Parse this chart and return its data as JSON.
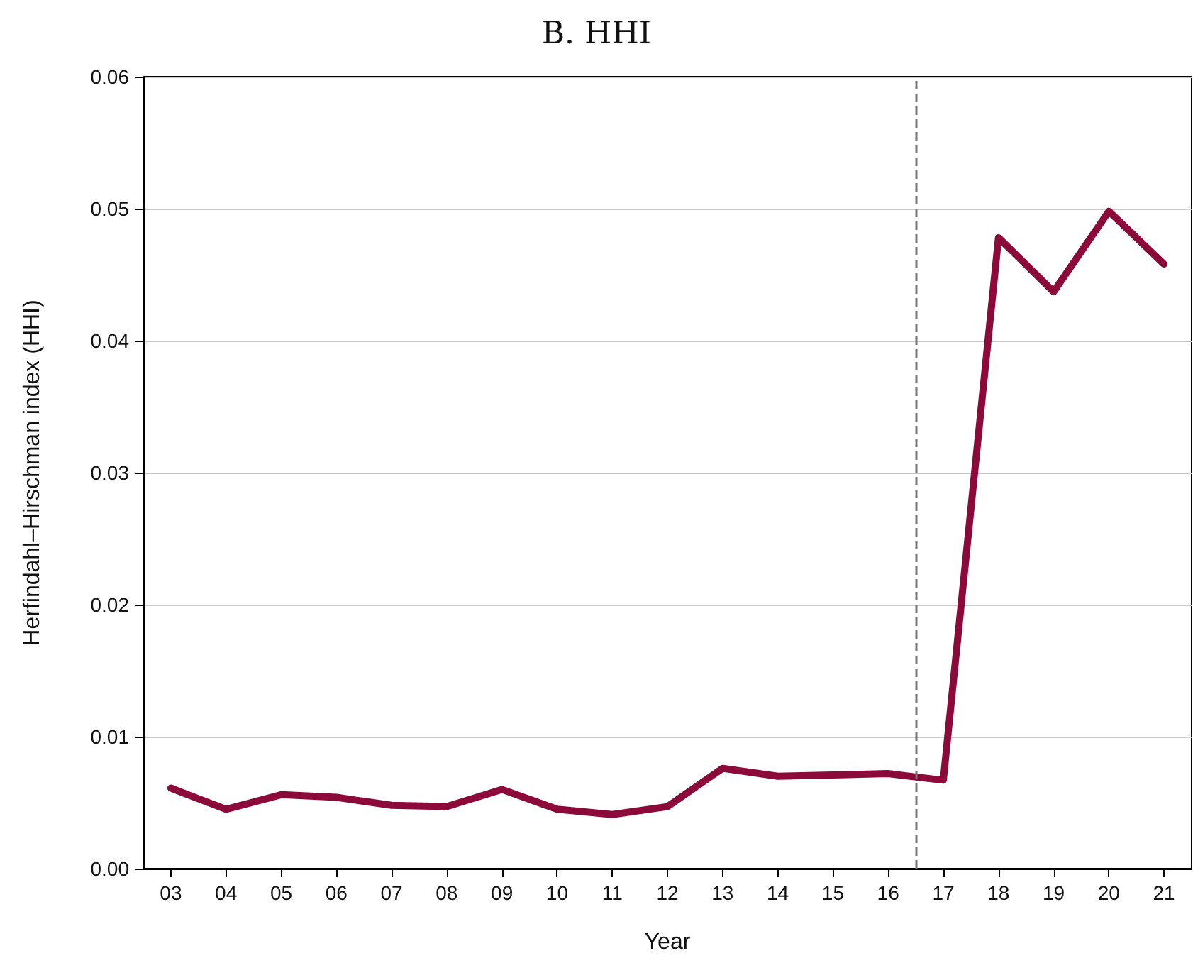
{
  "chart_data": {
    "type": "line",
    "title": "B. HHI",
    "xlabel": "Year",
    "ylabel": "Herfindahl–Hirschman index (HHI)",
    "x": [
      3,
      4,
      5,
      6,
      7,
      8,
      9,
      10,
      11,
      12,
      13,
      14,
      15,
      16,
      17,
      18,
      19,
      20,
      21
    ],
    "series": [
      {
        "color": "#8b0a3a",
        "values": [
          0.0061,
          0.0045,
          0.0056,
          0.0054,
          0.0048,
          0.0047,
          0.006,
          0.0045,
          0.0041,
          0.0047,
          0.0076,
          0.007,
          0.0071,
          0.0072,
          0.0067,
          0.0478,
          0.0437,
          0.0498,
          0.0458
        ]
      }
    ],
    "xlim": [
      2.5,
      21.5
    ],
    "xticks": [
      {
        "value": 3,
        "label": "03"
      },
      {
        "value": 4,
        "label": "04"
      },
      {
        "value": 5,
        "label": "05"
      },
      {
        "value": 6,
        "label": "06"
      },
      {
        "value": 7,
        "label": "07"
      },
      {
        "value": 8,
        "label": "08"
      },
      {
        "value": 9,
        "label": "09"
      },
      10,
      11,
      12,
      13,
      14,
      15,
      16,
      17,
      18,
      19,
      20,
      21
    ],
    "ylim": [
      0,
      0.06
    ],
    "yticks": [
      {
        "value": 0,
        "label": "0.00"
      },
      0.01,
      0.02,
      0.03,
      0.04,
      0.05,
      0.06
    ],
    "ref_lines": [
      {
        "axis": "x",
        "value": 16.5,
        "color": "#777777",
        "line_style": "dashed"
      }
    ],
    "grid": "y",
    "marker": "none",
    "line_style": "solid"
  }
}
